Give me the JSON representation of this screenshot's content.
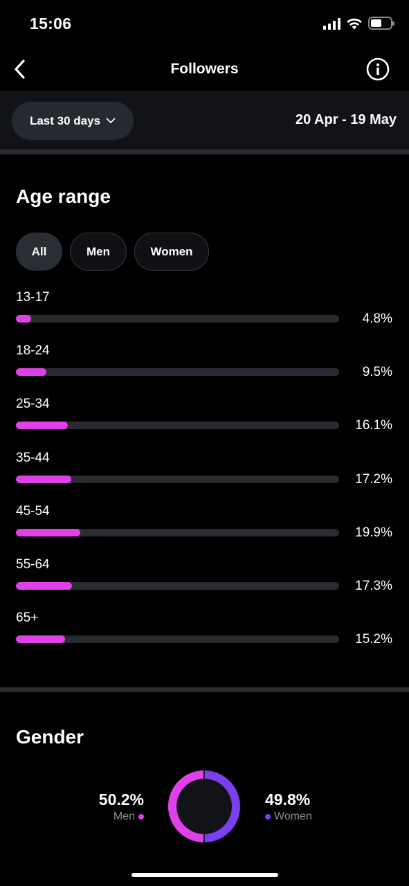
{
  "status": {
    "time": "15:06"
  },
  "header": {
    "title": "Followers",
    "back_icon": "chevron-left-icon",
    "info_icon": "info-icon"
  },
  "filter": {
    "period_label": "Last 30 days",
    "date_range": "20 Apr - 19 May"
  },
  "age_section": {
    "title": "Age range",
    "chips": [
      {
        "label": "All",
        "active": true
      },
      {
        "label": "Men",
        "active": false
      },
      {
        "label": "Women",
        "active": false
      }
    ],
    "rows": [
      {
        "label": "13-17",
        "pct": "4.8%",
        "value": 4.8
      },
      {
        "label": "18-24",
        "pct": "9.5%",
        "value": 9.5
      },
      {
        "label": "25-34",
        "pct": "16.1%",
        "value": 16.1
      },
      {
        "label": "35-44",
        "pct": "17.2%",
        "value": 17.2
      },
      {
        "label": "45-54",
        "pct": "19.9%",
        "value": 19.9
      },
      {
        "label": "55-64",
        "pct": "17.3%",
        "value": 17.3
      },
      {
        "label": "65+",
        "pct": "15.2%",
        "value": 15.2
      }
    ],
    "scale_max_percent": 100
  },
  "gender_section": {
    "title": "Gender",
    "men": {
      "pct": "50.2%",
      "label": "Men",
      "value": 50.2,
      "color": "#e040e8"
    },
    "women": {
      "pct": "49.8%",
      "label": "Women",
      "value": 49.8,
      "color": "#7b3ff2"
    }
  },
  "colors": {
    "accent": "#e040e8",
    "women": "#7b3ff2",
    "background": "#000000"
  }
}
